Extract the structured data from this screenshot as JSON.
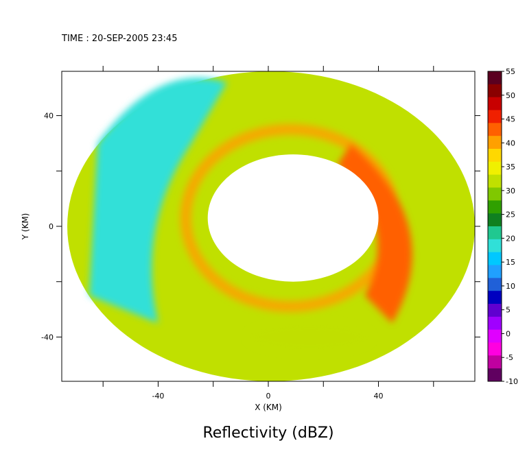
{
  "header": {
    "time_label": "TIME : 20-SEP-2005 23:45"
  },
  "chart_data": {
    "type": "heatmap",
    "title": "Reflectivity (dBZ)",
    "xlabel": "X (KM)",
    "ylabel": "Y (KM)",
    "xlim": [
      -75,
      75
    ],
    "ylim": [
      -56,
      56
    ],
    "x_ticks": [
      -40,
      0,
      40
    ],
    "y_ticks": [
      40,
      0,
      -40
    ],
    "colorbar": {
      "min": -10,
      "max": 55,
      "ticks": [
        55,
        50,
        45,
        40,
        35,
        30,
        25,
        20,
        15,
        10,
        5,
        0,
        -5,
        -10
      ],
      "colors": [
        "#5a0020",
        "#8a0000",
        "#c80000",
        "#f02000",
        "#ff6000",
        "#ffa000",
        "#ffd800",
        "#f0f000",
        "#c0e000",
        "#80c800",
        "#30a000",
        "#108020",
        "#20c890",
        "#30e0d8",
        "#00c8ff",
        "#20a0ff",
        "#2060d8",
        "#0000c0",
        "#6000d0",
        "#a000ff",
        "#e000ff",
        "#ff00e0",
        "#c000a0",
        "#600060"
      ]
    },
    "field_description": {
      "data_region": "annulus centered near (5, 5) km, outer radius approx 75 km, inner echo-free eye radius approx 25 km",
      "rainbands": [
        {
          "feature": "outer western band",
          "dbz": 18,
          "location": "west"
        },
        {
          "feature": "eyewall",
          "dbz": 42,
          "location": "surrounds eye"
        },
        {
          "feature": "southeast band",
          "dbz": 44,
          "location": "east / southeast"
        },
        {
          "feature": "background",
          "dbz": 32,
          "location": "remaining domain"
        }
      ]
    }
  }
}
